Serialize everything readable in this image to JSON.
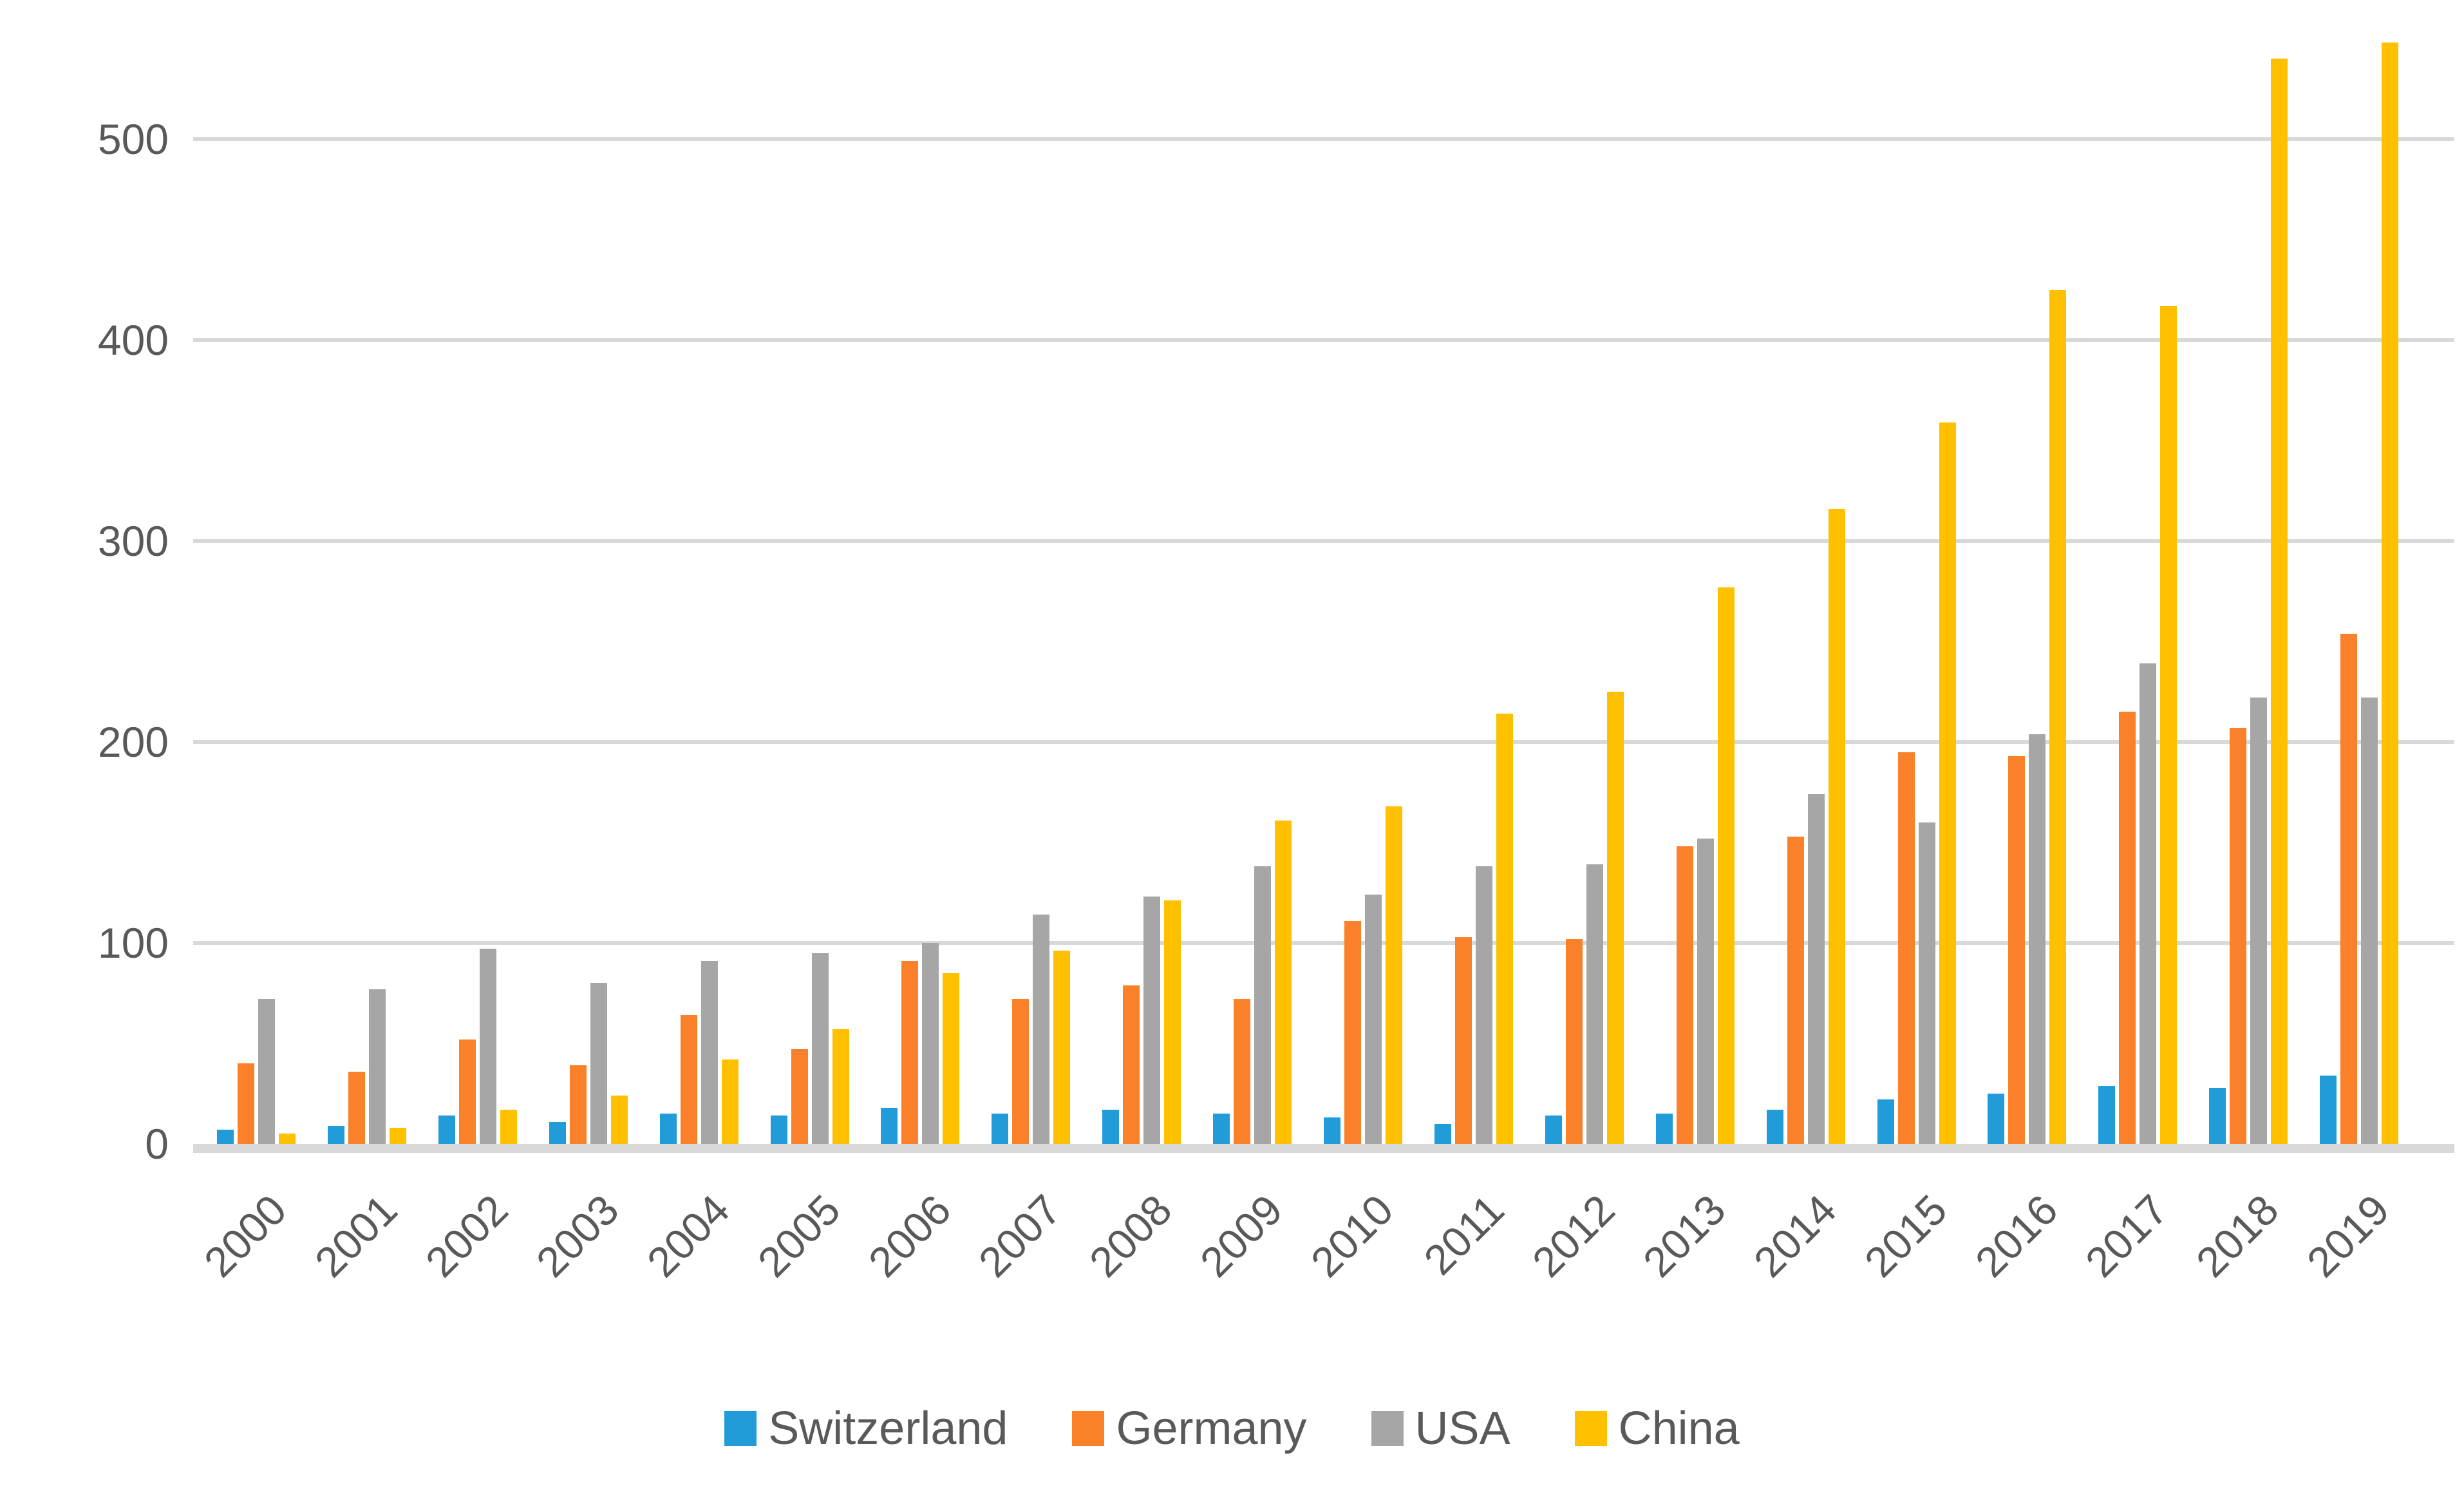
{
  "chart_data": {
    "type": "bar",
    "title": "",
    "categories": [
      "2000",
      "2001",
      "2002",
      "2003",
      "2004",
      "2005",
      "2006",
      "2007",
      "2008",
      "2009",
      "2010",
      "2011",
      "2012",
      "2013",
      "2014",
      "2015",
      "2016",
      "2017",
      "2018",
      "2019"
    ],
    "series": [
      {
        "name": "Switzerland",
        "color": "#219cd8",
        "values": [
          7,
          9,
          14,
          11,
          15,
          14,
          18,
          15,
          17,
          15,
          13,
          10,
          14,
          15,
          17,
          22,
          25,
          29,
          28,
          34
        ]
      },
      {
        "name": "Germany",
        "color": "#fa8029",
        "values": [
          40,
          36,
          52,
          39,
          64,
          47,
          91,
          72,
          79,
          72,
          111,
          103,
          102,
          148,
          153,
          195,
          193,
          215,
          207,
          254
        ]
      },
      {
        "name": "USA",
        "color": "#a6a6a6",
        "values": [
          72,
          77,
          97,
          80,
          91,
          95,
          100,
          114,
          123,
          138,
          124,
          138,
          139,
          152,
          174,
          160,
          204,
          239,
          222,
          222
        ]
      },
      {
        "name": "China",
        "color": "#ffc000",
        "values": [
          5,
          8,
          17,
          24,
          42,
          57,
          85,
          96,
          121,
          161,
          168,
          214,
          225,
          277,
          316,
          359,
          425,
          417,
          540,
          548
        ]
      }
    ],
    "xlabel": "",
    "ylabel": "",
    "ylim": [
      0,
      550
    ],
    "yticks": [
      0,
      100,
      200,
      300,
      400,
      500
    ],
    "grid": true,
    "legend_position": "bottom",
    "colors": {
      "gridline": "#d9d9d9",
      "axis_line": "#d9d9d9",
      "tick_text": "#595959",
      "background": "#ffffff"
    }
  }
}
